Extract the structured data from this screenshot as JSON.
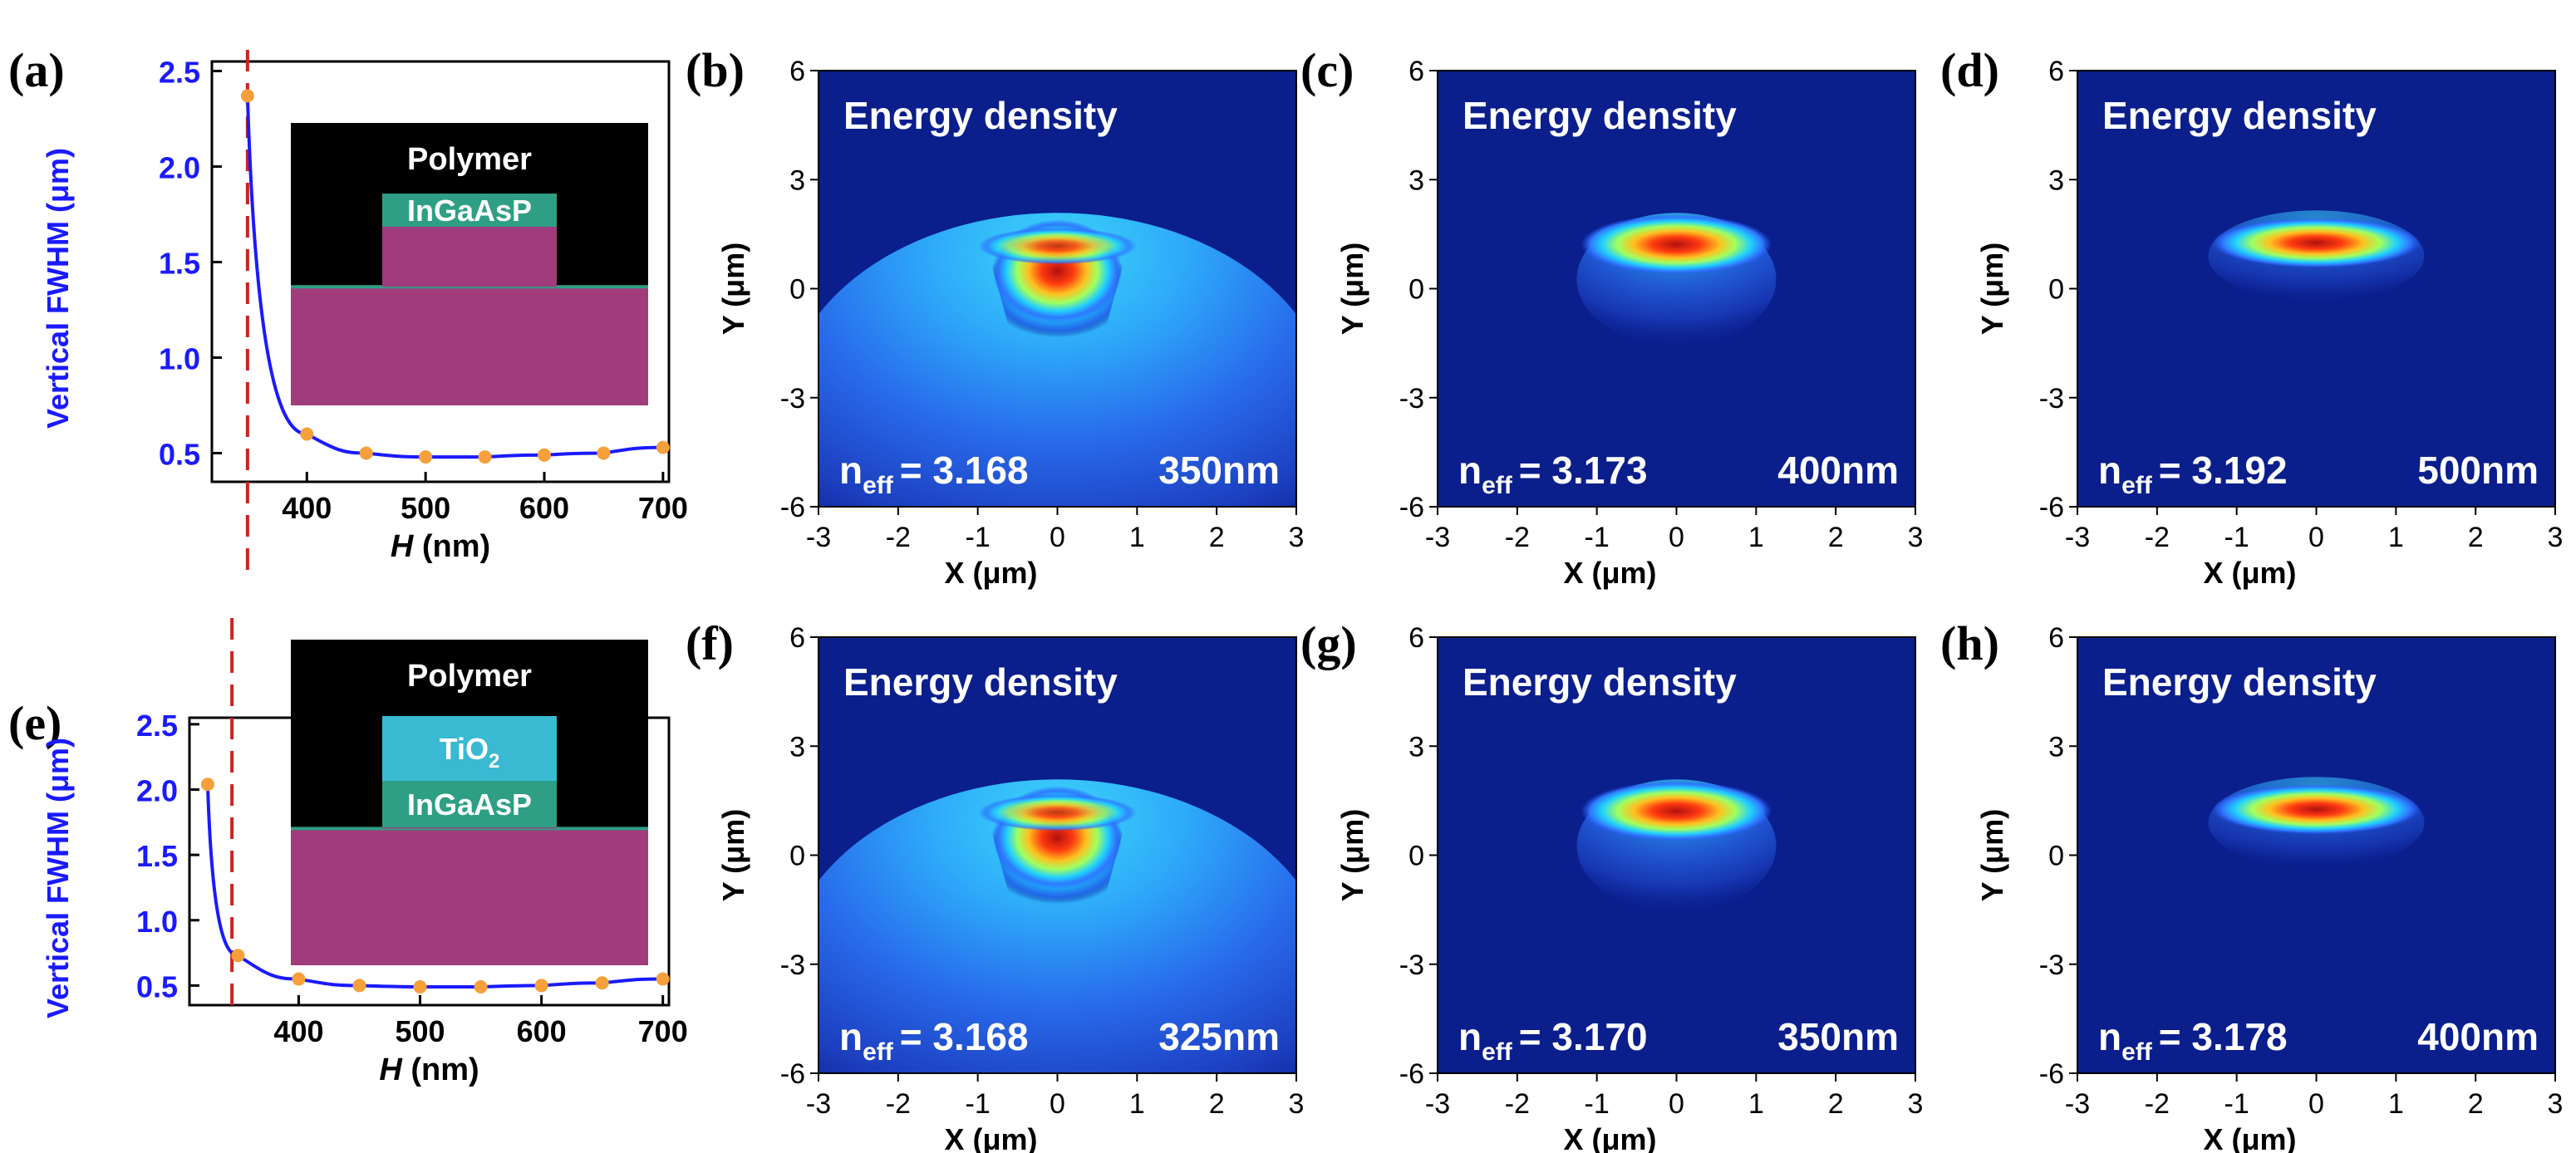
{
  "figure": {
    "accent_blue": "#1a1aff",
    "marker_orange": "#f5a03a",
    "cutoff_red": "#cc2222"
  },
  "chart_data": [
    {
      "id": "a",
      "label": "(a)",
      "type": "line",
      "xlabel_italic": "H",
      "xlabel_rest": " (nm)",
      "ylabel": "Vertical FWHM (μm)",
      "xlim": [
        320,
        705
      ],
      "ylim": [
        0.35,
        2.55
      ],
      "xticks": [
        400,
        500,
        600,
        700
      ],
      "yticks": [
        0.5,
        1.0,
        1.5,
        2.0,
        2.5
      ],
      "ytick_labels": [
        "0.5",
        "1.0",
        "1.5",
        "2.0",
        "2.5"
      ],
      "cutoff_x": 350,
      "series": [
        {
          "name": "FWHM",
          "x": [
            350,
            400,
            450,
            500,
            550,
            600,
            650,
            700
          ],
          "y": [
            2.37,
            0.6,
            0.5,
            0.48,
            0.48,
            0.49,
            0.5,
            0.53
          ]
        }
      ],
      "inset": {
        "top_label": "Polymer",
        "layers": [
          {
            "label": "InGaAsP",
            "color": "#2e9f84"
          }
        ]
      }
    },
    {
      "id": "e",
      "label": "(e)",
      "type": "line",
      "xlabel_italic": "H",
      "xlabel_rest": " (nm)",
      "ylabel": "Vertical FWHM (μm)",
      "xlim": [
        310,
        705
      ],
      "ylim": [
        0.35,
        2.55
      ],
      "xticks": [
        400,
        500,
        600,
        700
      ],
      "yticks": [
        0.5,
        1.0,
        1.5,
        2.0,
        2.5
      ],
      "ytick_labels": [
        "0.5",
        "1.0",
        "1.5",
        "2.0",
        "2.5"
      ],
      "cutoff_x": 345,
      "series": [
        {
          "name": "FWHM",
          "x": [
            325,
            350,
            400,
            450,
            500,
            550,
            600,
            650,
            700
          ],
          "y": [
            2.04,
            0.73,
            0.55,
            0.5,
            0.49,
            0.49,
            0.5,
            0.52,
            0.55
          ]
        }
      ],
      "inset": {
        "top_label": "Polymer",
        "layers": [
          {
            "label_main": "TiO",
            "label_sub": "2",
            "color": "#3ab9d2"
          },
          {
            "label": "InGaAsP",
            "color": "#2e9f84"
          }
        ]
      }
    },
    {
      "id": "b",
      "label": "(b)",
      "type": "heatmap",
      "title": "Energy density",
      "neff_prefix": "n",
      "neff_sub": "eff",
      "neff_value": "= 3.168",
      "height_label": "350nm",
      "mode": "wide",
      "xlabel": "X (μm)",
      "ylabel": "Y (μm)",
      "xlim": [
        -3,
        3
      ],
      "ylim": [
        -6,
        6
      ],
      "xticks": [
        "-3",
        "-2",
        "-1",
        "0",
        "1",
        "2",
        "3"
      ],
      "yticks": [
        "-6",
        "-3",
        "0",
        "3",
        "6"
      ]
    },
    {
      "id": "c",
      "label": "(c)",
      "type": "heatmap",
      "title": "Energy density",
      "neff_prefix": "n",
      "neff_sub": "eff",
      "neff_value": "= 3.173",
      "height_label": "400nm",
      "mode": "confined",
      "xlabel": "X (μm)",
      "ylabel": "Y (μm)",
      "xlim": [
        -3,
        3
      ],
      "ylim": [
        -6,
        6
      ],
      "xticks": [
        "-3",
        "-2",
        "-1",
        "0",
        "1",
        "2",
        "3"
      ],
      "yticks": [
        "-6",
        "-3",
        "0",
        "3",
        "6"
      ]
    },
    {
      "id": "d",
      "label": "(d)",
      "type": "heatmap",
      "title": "Energy density",
      "neff_prefix": "n",
      "neff_sub": "eff",
      "neff_value": "= 3.192",
      "height_label": "500nm",
      "mode": "tight",
      "xlabel": "X (μm)",
      "ylabel": "Y (μm)",
      "xlim": [
        -3,
        3
      ],
      "ylim": [
        -6,
        6
      ],
      "xticks": [
        "-3",
        "-2",
        "-1",
        "0",
        "1",
        "2",
        "3"
      ],
      "yticks": [
        "-6",
        "-3",
        "0",
        "3",
        "6"
      ]
    },
    {
      "id": "f",
      "label": "(f)",
      "type": "heatmap",
      "title": "Energy density",
      "neff_prefix": "n",
      "neff_sub": "eff",
      "neff_value": "= 3.168",
      "height_label": "325nm",
      "mode": "wide",
      "xlabel": "X (μm)",
      "ylabel": "Y (μm)",
      "xlim": [
        -3,
        3
      ],
      "ylim": [
        -6,
        6
      ],
      "xticks": [
        "-3",
        "-2",
        "-1",
        "0",
        "1",
        "2",
        "3"
      ],
      "yticks": [
        "-6",
        "-3",
        "0",
        "3",
        "6"
      ]
    },
    {
      "id": "g",
      "label": "(g)",
      "type": "heatmap",
      "title": "Energy density",
      "neff_prefix": "n",
      "neff_sub": "eff",
      "neff_value": "= 3.170",
      "height_label": "350nm",
      "mode": "confined",
      "xlabel": "X (μm)",
      "ylabel": "Y (μm)",
      "xlim": [
        -3,
        3
      ],
      "ylim": [
        -6,
        6
      ],
      "xticks": [
        "-3",
        "-2",
        "-1",
        "0",
        "1",
        "2",
        "3"
      ],
      "yticks": [
        "-6",
        "-3",
        "0",
        "3",
        "6"
      ]
    },
    {
      "id": "h",
      "label": "(h)",
      "type": "heatmap",
      "title": "Energy density",
      "neff_prefix": "n",
      "neff_sub": "eff",
      "neff_value": "= 3.178",
      "height_label": "400nm",
      "mode": "tight",
      "xlabel": "X (μm)",
      "ylabel": "Y (μm)",
      "xlim": [
        -3,
        3
      ],
      "ylim": [
        -6,
        6
      ],
      "xticks": [
        "-3",
        "-2",
        "-1",
        "0",
        "1",
        "2",
        "3"
      ],
      "yticks": [
        "-6",
        "-3",
        "0",
        "3",
        "6"
      ]
    }
  ]
}
